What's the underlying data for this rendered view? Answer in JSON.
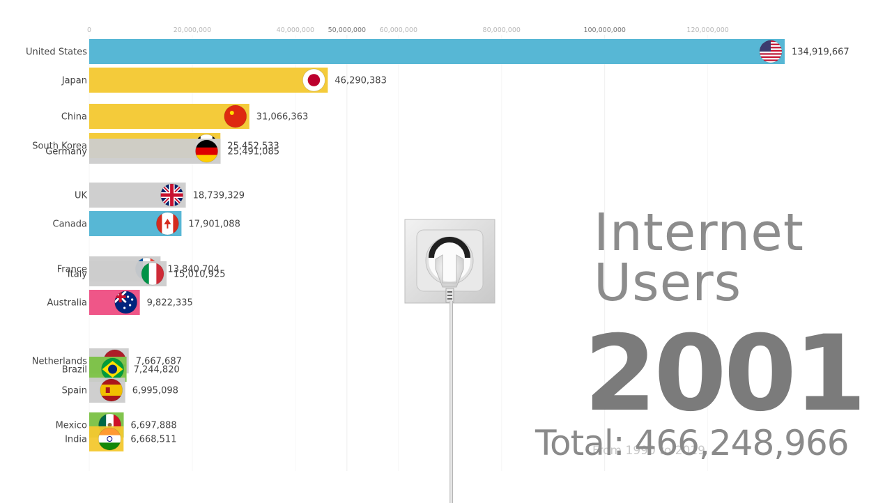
{
  "chart_data": {
    "type": "bar",
    "orientation": "horizontal",
    "xlim": [
      0,
      135000000
    ],
    "ticks": [
      {
        "value": 0,
        "label": "0"
      },
      {
        "value": 20000000,
        "label": "20,000,000"
      },
      {
        "value": 40000000,
        "label": "40,000,000"
      },
      {
        "value": 50000000,
        "label": "50,000,000",
        "major": true
      },
      {
        "value": 60000000,
        "label": "60,000,000"
      },
      {
        "value": 80000000,
        "label": "80,000,000"
      },
      {
        "value": 100000000,
        "label": "100,000,000",
        "major": true
      },
      {
        "value": 120000000,
        "label": "120,000,000"
      }
    ],
    "bars": [
      {
        "name": "United States",
        "value": 134919667,
        "label": "134,919,667",
        "color": "#4eb3d3",
        "flag": "flag-usa"
      },
      {
        "name": "Japan",
        "value": 46290383,
        "label": "46,290,383",
        "color": "#f3c82f",
        "flag": "flag-japan"
      },
      {
        "name": "China",
        "value": 31066363,
        "label": "31,066,363",
        "color": "#f3c82f",
        "flag": "flag-china"
      },
      {
        "name": "South Korea",
        "value": 25452533,
        "label": "25,452,533",
        "color": "#f3c82f",
        "flag": "flag-south-korea"
      },
      {
        "name": "Germany",
        "value": 25491085,
        "label": "25,491,085",
        "color": "#cccccc",
        "flag": "flag-germany"
      },
      {
        "name": "UK",
        "value": 18739329,
        "label": "18,739,329",
        "color": "#cccccc",
        "flag": "flag-uk"
      },
      {
        "name": "Canada",
        "value": 17901088,
        "label": "17,901,088",
        "color": "#4eb3d3",
        "flag": "flag-canada"
      },
      {
        "name": "France",
        "value": 13840704,
        "label": "13,840,704",
        "color": "#cccccc",
        "flag": "flag-france"
      },
      {
        "name": "Italy",
        "value": 15010925,
        "label": "15,010,925",
        "color": "#cccccc",
        "flag": "flag-italy"
      },
      {
        "name": "Australia",
        "value": 9822335,
        "label": "9,822,335",
        "color": "#ee4d82",
        "flag": "flag-australia"
      },
      {
        "name": "Netherlands",
        "value": 7667687,
        "label": "7,667,687",
        "color": "#cccccc",
        "flag": "flag-netherlands"
      },
      {
        "name": "Brazil",
        "value": 7244820,
        "label": "7,244,820",
        "color": "#7ac143",
        "flag": "flag-brazil"
      },
      {
        "name": "Spain",
        "value": 6995098,
        "label": "6,995,098",
        "color": "#cccccc",
        "flag": "flag-spain"
      },
      {
        "name": "Mexico",
        "value": 6697888,
        "label": "6,697,888",
        "color": "#7ac143",
        "flag": "flag-mexico"
      },
      {
        "name": "India",
        "value": 6668511,
        "label": "6,668,511",
        "color": "#f3c82f",
        "flag": "flag-india"
      }
    ]
  },
  "overlay": {
    "title_line1": "Internet",
    "title_line2": "Users",
    "year": "2001",
    "total": "Total: 466,248,966",
    "range": "From 1990 to 2019"
  }
}
